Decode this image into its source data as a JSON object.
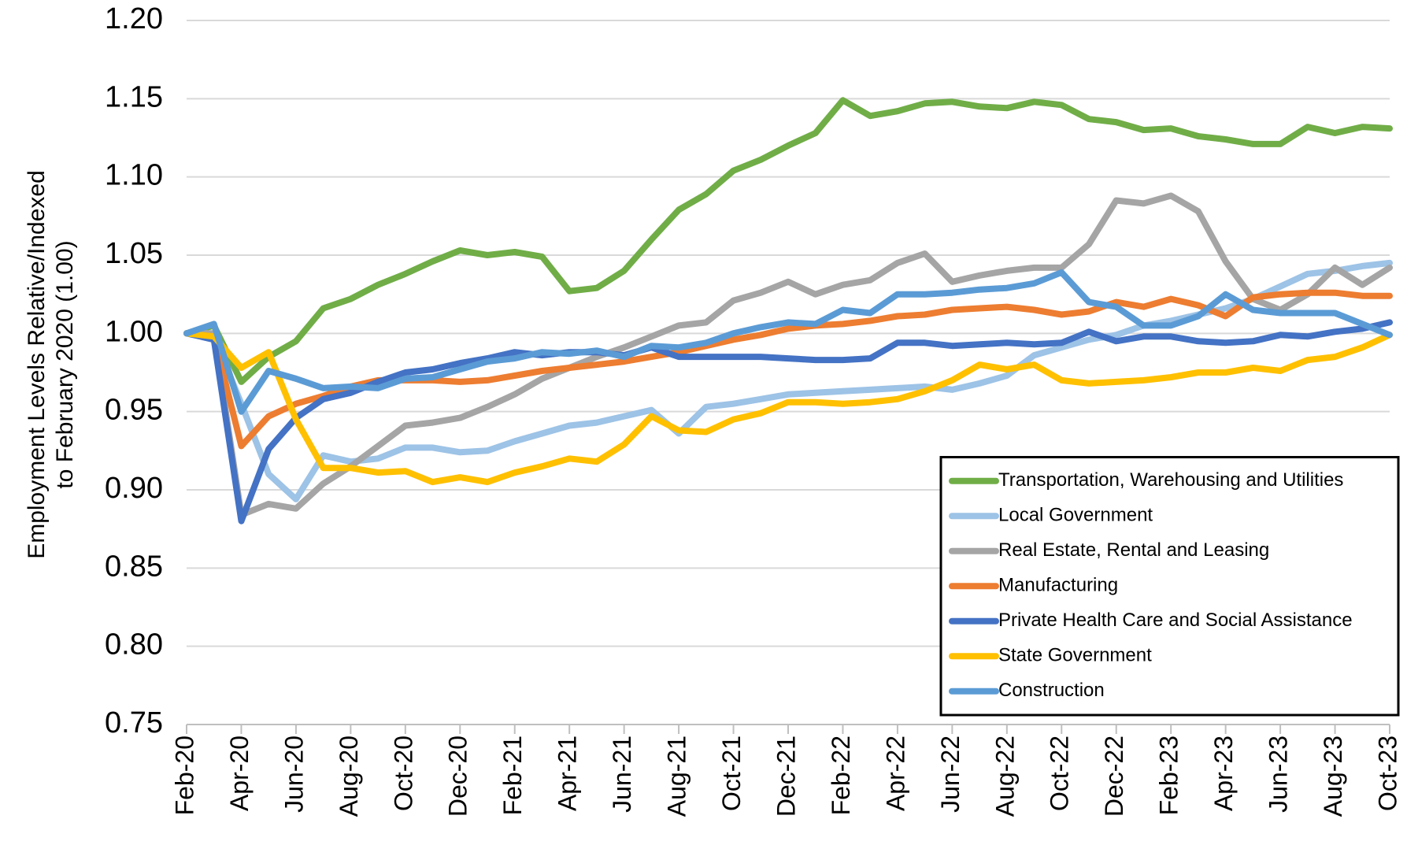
{
  "chart_data": {
    "type": "line",
    "y_label": [
      "Employment Levels Relative/Indexed",
      "to February 2020 (1.00)"
    ],
    "categories": [
      "Feb-20",
      null,
      "Apr-20",
      null,
      "Jun-20",
      null,
      "Aug-20",
      null,
      "Oct-20",
      null,
      "Dec-20",
      null,
      "Feb-21",
      null,
      "Apr-21",
      null,
      "Jun-21",
      null,
      "Aug-21",
      null,
      "Oct-21",
      null,
      "Dec-21",
      null,
      "Feb-22",
      null,
      "Apr-22",
      null,
      "Jun-22",
      null,
      "Aug-22",
      null,
      "Oct-22",
      null,
      "Dec-22",
      null,
      "Feb-23",
      null,
      "Apr-23",
      null,
      "Jun-23",
      null,
      "Aug-23",
      null,
      "Oct-23"
    ],
    "ylim": [
      0.75,
      1.2
    ],
    "yticks": [
      {
        "value": 0.75,
        "label": "0.75"
      },
      {
        "value": 0.8,
        "label": "0.80"
      },
      {
        "value": 0.85,
        "label": "0.85"
      },
      {
        "value": 0.9,
        "label": "0.90"
      },
      {
        "value": 0.95,
        "label": "0.95"
      },
      {
        "value": 1.0,
        "label": "1.00"
      },
      {
        "value": 1.05,
        "label": "1.05"
      },
      {
        "value": 1.1,
        "label": "1.10"
      },
      {
        "value": 1.15,
        "label": "1.15"
      },
      {
        "value": 1.2,
        "label": "1.20"
      }
    ],
    "grid": true,
    "legend": "lower right",
    "series": [
      {
        "name": "Transportation, Warehousing and Utilities",
        "color": "#70ad47",
        "values": [
          1.0,
          1.005,
          0.969,
          0.985,
          0.995,
          1.016,
          1.022,
          1.031,
          1.038,
          1.046,
          1.053,
          1.05,
          1.052,
          1.049,
          1.027,
          1.029,
          1.04,
          1.06,
          1.079,
          1.089,
          1.104,
          1.111,
          1.12,
          1.128,
          1.149,
          1.139,
          1.142,
          1.147,
          1.148,
          1.145,
          1.144,
          1.148,
          1.146,
          1.137,
          1.135,
          1.13,
          1.131,
          1.126,
          1.124,
          1.121,
          1.121,
          1.132,
          1.128,
          1.132,
          1.131
        ]
      },
      {
        "name": "Local Government",
        "color": "#9dc3e6",
        "values": [
          1.0,
          0.998,
          0.955,
          0.91,
          0.894,
          0.922,
          0.918,
          0.92,
          0.927,
          0.927,
          0.924,
          0.925,
          0.931,
          0.936,
          0.941,
          0.943,
          0.947,
          0.951,
          0.936,
          0.953,
          0.955,
          0.958,
          0.961,
          0.962,
          0.963,
          0.964,
          0.965,
          0.966,
          0.964,
          0.968,
          0.973,
          0.986,
          0.991,
          0.996,
          0.999,
          1.005,
          1.008,
          1.012,
          1.016,
          1.022,
          1.03,
          1.038,
          1.04,
          1.043,
          1.045
        ]
      },
      {
        "name": "Real Estate, Rental and Leasing",
        "color": "#a5a5a5",
        "values": [
          1.0,
          1.0,
          0.884,
          0.891,
          0.888,
          0.904,
          0.915,
          0.928,
          0.941,
          0.943,
          0.946,
          0.953,
          0.961,
          0.971,
          0.978,
          0.985,
          0.991,
          0.998,
          1.005,
          1.007,
          1.021,
          1.026,
          1.033,
          1.025,
          1.031,
          1.034,
          1.045,
          1.051,
          1.033,
          1.037,
          1.04,
          1.042,
          1.042,
          1.057,
          1.085,
          1.083,
          1.088,
          1.078,
          1.046,
          1.022,
          1.015,
          1.025,
          1.042,
          1.031,
          1.042
        ]
      },
      {
        "name": "Manufacturing",
        "color": "#ed7d31",
        "values": [
          1.0,
          0.998,
          0.928,
          0.947,
          0.955,
          0.96,
          0.966,
          0.97,
          0.97,
          0.97,
          0.969,
          0.97,
          0.973,
          0.976,
          0.978,
          0.98,
          0.982,
          0.985,
          0.988,
          0.992,
          0.996,
          0.999,
          1.003,
          1.005,
          1.006,
          1.008,
          1.011,
          1.012,
          1.015,
          1.016,
          1.017,
          1.015,
          1.012,
          1.014,
          1.02,
          1.017,
          1.022,
          1.018,
          1.011,
          1.023,
          1.025,
          1.026,
          1.026,
          1.024,
          1.024
        ]
      },
      {
        "name": "Private Health Care and Social Assistance",
        "color": "#4472c4",
        "values": [
          1.0,
          0.996,
          0.88,
          0.926,
          0.946,
          0.958,
          0.962,
          0.969,
          0.975,
          0.977,
          0.981,
          0.984,
          0.988,
          0.986,
          0.988,
          0.988,
          0.986,
          0.991,
          0.985,
          0.985,
          0.985,
          0.985,
          0.984,
          0.983,
          0.983,
          0.984,
          0.994,
          0.994,
          0.992,
          0.993,
          0.994,
          0.993,
          0.994,
          1.001,
          0.995,
          0.998,
          0.998,
          0.995,
          0.994,
          0.995,
          0.999,
          0.998,
          1.001,
          1.003,
          1.007
        ]
      },
      {
        "name": "State Government",
        "color": "#ffc000",
        "values": [
          1.0,
          0.998,
          0.978,
          0.988,
          0.945,
          0.914,
          0.914,
          0.911,
          0.912,
          0.905,
          0.908,
          0.905,
          0.911,
          0.915,
          0.92,
          0.918,
          0.929,
          0.947,
          0.938,
          0.937,
          0.945,
          0.949,
          0.956,
          0.956,
          0.955,
          0.956,
          0.958,
          0.963,
          0.97,
          0.98,
          0.977,
          0.98,
          0.97,
          0.968,
          0.969,
          0.97,
          0.972,
          0.975,
          0.975,
          0.978,
          0.976,
          0.983,
          0.985,
          0.991,
          0.999
        ]
      },
      {
        "name": "Construction",
        "color": "#5b9bd5",
        "values": [
          1.0,
          1.006,
          0.95,
          0.976,
          0.971,
          0.965,
          0.966,
          0.965,
          0.971,
          0.972,
          0.977,
          0.982,
          0.984,
          0.988,
          0.987,
          0.989,
          0.985,
          0.992,
          0.991,
          0.994,
          1.0,
          1.004,
          1.007,
          1.006,
          1.015,
          1.013,
          1.025,
          1.025,
          1.026,
          1.028,
          1.029,
          1.032,
          1.039,
          1.02,
          1.017,
          1.005,
          1.005,
          1.011,
          1.025,
          1.015,
          1.013,
          1.013,
          1.013,
          1.006,
          0.999
        ]
      }
    ]
  }
}
